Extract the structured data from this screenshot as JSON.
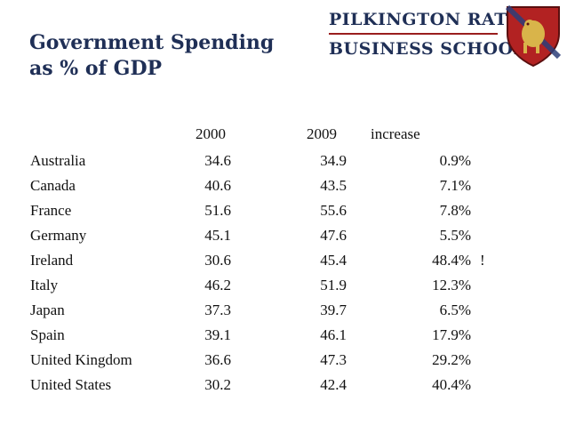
{
  "title": {
    "line1": "Government Spending",
    "line2": "as % of GDP"
  },
  "logo": {
    "line1": "PILKINGTON RATIU",
    "line2": "BUSINESS SCHOOL",
    "crest": "shield-crest-icon"
  },
  "colors": {
    "title": "#1f2f56",
    "logo_text": "#1f2f56",
    "rule": "#9a1e1e",
    "crest_bg": "#b22222",
    "crest_figure": "#d9b44a"
  },
  "table": {
    "headers": [
      "2000",
      "2009",
      "increase"
    ],
    "rows": [
      {
        "country": "Australia",
        "y2000": "34.6",
        "y2009": "34.9",
        "increase": "0.9%",
        "note": ""
      },
      {
        "country": "Canada",
        "y2000": "40.6",
        "y2009": "43.5",
        "increase": "7.1%",
        "note": ""
      },
      {
        "country": "France",
        "y2000": "51.6",
        "y2009": "55.6",
        "increase": "7.8%",
        "note": ""
      },
      {
        "country": "Germany",
        "y2000": "45.1",
        "y2009": "47.6",
        "increase": "5.5%",
        "note": ""
      },
      {
        "country": "Ireland",
        "y2000": "30.6",
        "y2009": "45.4",
        "increase": "48.4%",
        "note": "!"
      },
      {
        "country": "Italy",
        "y2000": "46.2",
        "y2009": "51.9",
        "increase": "12.3%",
        "note": ""
      },
      {
        "country": "Japan",
        "y2000": "37.3",
        "y2009": "39.7",
        "increase": "6.5%",
        "note": ""
      },
      {
        "country": "Spain",
        "y2000": "39.1",
        "y2009": "46.1",
        "increase": "17.9%",
        "note": ""
      },
      {
        "country": "United Kingdom",
        "y2000": "36.6",
        "y2009": "47.3",
        "increase": "29.2%",
        "note": ""
      },
      {
        "country": "United States",
        "y2000": "30.2",
        "y2009": "42.4",
        "increase": "40.4%",
        "note": ""
      }
    ]
  }
}
